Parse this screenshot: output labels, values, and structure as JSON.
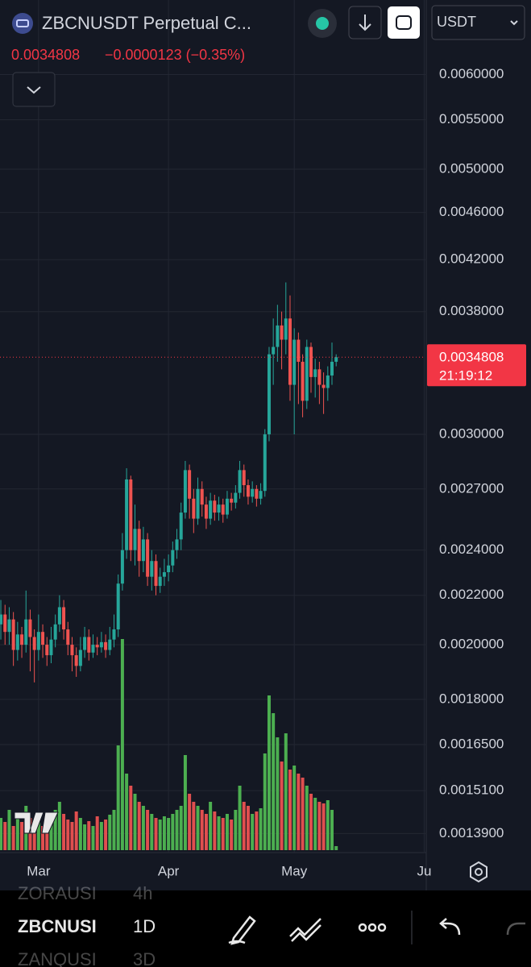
{
  "header": {
    "symbol_title": "ZBCNUSDT Perpetual C...",
    "last_price": "0.0034808",
    "change": "−0.0000123 (−0.35%)",
    "currency": "USDT"
  },
  "chart_data": {
    "type": "candlestick",
    "open": [
      0.00208,
      0.00212,
      0.00205,
      0.0021,
      0.00198,
      0.00204,
      0.002,
      0.0021,
      0.00203,
      0.00198,
      0.00205,
      0.002,
      0.00196,
      0.00202,
      0.00208,
      0.00215,
      0.00206,
      0.002,
      0.00196,
      0.00192,
      0.00198,
      0.00203,
      0.00197,
      0.002,
      0.00199,
      0.00201,
      0.00198,
      0.00202,
      0.00206,
      0.00225,
      0.0024,
      0.00275,
      0.0024,
      0.0025,
      0.00235,
      0.00245,
      0.00228,
      0.00235,
      0.00224,
      0.00228,
      0.0023,
      0.00233,
      0.0024,
      0.00245,
      0.00258,
      0.0028,
      0.00265,
      0.00255,
      0.0027,
      0.00262,
      0.00255,
      0.00264,
      0.00258,
      0.00262,
      0.00257,
      0.00265,
      0.00263,
      0.00268,
      0.0028,
      0.00272,
      0.00266,
      0.0027,
      0.00265,
      0.00269,
      0.003,
      0.0035,
      0.00355,
      0.0037,
      0.0036,
      0.00375,
      0.0033,
      0.0036,
      0.00345,
      0.0032,
      0.00355,
      0.00335,
      0.0034,
      0.0033,
      0.00328,
      0.00336,
      0.00345
    ],
    "high": [
      0.00218,
      0.00216,
      0.00215,
      0.00213,
      0.00209,
      0.00207,
      0.00222,
      0.00214,
      0.00206,
      0.00212,
      0.00208,
      0.00203,
      0.00207,
      0.00212,
      0.0022,
      0.00218,
      0.00209,
      0.00203,
      0.00199,
      0.00203,
      0.00207,
      0.00206,
      0.00204,
      0.00203,
      0.00205,
      0.00204,
      0.00207,
      0.00212,
      0.00229,
      0.00248,
      0.00281,
      0.00277,
      0.00262,
      0.00254,
      0.00251,
      0.00248,
      0.0024,
      0.00238,
      0.00232,
      0.00236,
      0.00238,
      0.00244,
      0.0025,
      0.00263,
      0.00285,
      0.00283,
      0.0027,
      0.00276,
      0.00274,
      0.00266,
      0.00268,
      0.00267,
      0.00266,
      0.00265,
      0.00269,
      0.00268,
      0.00272,
      0.00285,
      0.00283,
      0.00275,
      0.00274,
      0.00272,
      0.00273,
      0.00303,
      0.00355,
      0.00375,
      0.00385,
      0.0038,
      0.00402,
      0.00392,
      0.00368,
      0.00365,
      0.0035,
      0.0036,
      0.00358,
      0.00347,
      0.00345,
      0.00338,
      0.00342,
      0.00358,
      0.0035
    ],
    "low": [
      0.00202,
      0.002,
      0.002,
      0.00192,
      0.00194,
      0.00195,
      0.00197,
      0.0019,
      0.00186,
      0.00194,
      0.00195,
      0.00192,
      0.00193,
      0.00199,
      0.00205,
      0.00202,
      0.00196,
      0.0019,
      0.00188,
      0.0019,
      0.00195,
      0.00194,
      0.00195,
      0.00196,
      0.00197,
      0.00195,
      0.00196,
      0.00199,
      0.00203,
      0.00222,
      0.00236,
      0.00235,
      0.00233,
      0.00228,
      0.0023,
      0.00224,
      0.00222,
      0.0022,
      0.00221,
      0.00224,
      0.00226,
      0.0023,
      0.00236,
      0.0024,
      0.00255,
      0.00255,
      0.00248,
      0.00252,
      0.00256,
      0.0025,
      0.00252,
      0.00254,
      0.00254,
      0.00253,
      0.00255,
      0.00259,
      0.0026,
      0.00265,
      0.00266,
      0.00262,
      0.00263,
      0.00261,
      0.00262,
      0.00266,
      0.00296,
      0.0033,
      0.00345,
      0.0034,
      0.0035,
      0.0032,
      0.003,
      0.00318,
      0.0031,
      0.00315,
      0.00325,
      0.00322,
      0.00318,
      0.00312,
      0.0032,
      0.0033,
      0.00342
    ],
    "close": [
      0.00212,
      0.00205,
      0.0021,
      0.00198,
      0.00204,
      0.002,
      0.0021,
      0.00203,
      0.00198,
      0.00205,
      0.002,
      0.00196,
      0.00202,
      0.00208,
      0.00215,
      0.00206,
      0.002,
      0.00196,
      0.00192,
      0.00198,
      0.00203,
      0.00197,
      0.002,
      0.00199,
      0.00201,
      0.00198,
      0.00202,
      0.00206,
      0.00225,
      0.0024,
      0.00275,
      0.0024,
      0.0025,
      0.00235,
      0.00245,
      0.00228,
      0.00235,
      0.00224,
      0.00228,
      0.0023,
      0.00233,
      0.0024,
      0.00245,
      0.00258,
      0.0028,
      0.00265,
      0.00255,
      0.0027,
      0.00262,
      0.00255,
      0.00264,
      0.00258,
      0.00262,
      0.00257,
      0.00265,
      0.00263,
      0.00268,
      0.0028,
      0.00272,
      0.00266,
      0.0027,
      0.00265,
      0.00269,
      0.003,
      0.0035,
      0.00355,
      0.0037,
      0.0036,
      0.00375,
      0.0033,
      0.0036,
      0.00345,
      0.0032,
      0.00355,
      0.00335,
      0.0034,
      0.0033,
      0.00328,
      0.00336,
      0.00345,
      0.0034808
    ],
    "volume": [
      40,
      35,
      50,
      30,
      45,
      35,
      55,
      40,
      30,
      45,
      30,
      38,
      42,
      50,
      60,
      45,
      38,
      35,
      48,
      40,
      32,
      36,
      30,
      42,
      35,
      38,
      44,
      50,
      130,
      262,
      95,
      80,
      70,
      60,
      55,
      50,
      45,
      40,
      38,
      42,
      40,
      45,
      50,
      55,
      118,
      70,
      60,
      55,
      50,
      45,
      60,
      48,
      42,
      40,
      45,
      38,
      50,
      80,
      60,
      55,
      45,
      48,
      52,
      120,
      192,
      170,
      140,
      110,
      145,
      100,
      105,
      95,
      90,
      80,
      70,
      65,
      60,
      58,
      62,
      50,
      5
    ],
    "up_color": "#26a69a",
    "down_color": "#ef5350",
    "volume_up_color": "#4caf50",
    "volume_down_color": "#e04f4f",
    "log_scale": true,
    "grid": true,
    "ylim": [
      0.00134,
      0.00636
    ],
    "yticks": [
      {
        "value": 0.006,
        "label": "0.0060000"
      },
      {
        "value": 0.0055,
        "label": "0.0055000"
      },
      {
        "value": 0.005,
        "label": "0.0050000"
      },
      {
        "value": 0.0046,
        "label": "0.0046000"
      },
      {
        "value": 0.0042,
        "label": "0.0042000"
      },
      {
        "value": 0.0038,
        "label": "0.0038000"
      },
      {
        "value": 0.003,
        "label": "0.0030000"
      },
      {
        "value": 0.0027,
        "label": "0.0027000"
      },
      {
        "value": 0.0024,
        "label": "0.0024000"
      },
      {
        "value": 0.0022,
        "label": "0.0022000"
      },
      {
        "value": 0.002,
        "label": "0.0020000"
      },
      {
        "value": 0.0018,
        "label": "0.0018000"
      },
      {
        "value": 0.00165,
        "label": "0.0016500"
      },
      {
        "value": 0.00151,
        "label": "0.0015100"
      },
      {
        "value": 0.00139,
        "label": "0.0013900"
      }
    ],
    "xlim": [
      -0.2,
      101.3
    ],
    "xticks": [
      {
        "value": 9,
        "label": "Mar"
      },
      {
        "value": 40,
        "label": "Apr"
      },
      {
        "value": 70,
        "label": "May"
      },
      {
        "value": 101,
        "label": "Ju"
      }
    ],
    "last_price": 0.0034808,
    "countdown": "21:19:12"
  },
  "toolbar": {
    "rows": [
      {
        "symbol": "ZORAUSI",
        "interval": "4h"
      },
      {
        "symbol": "ZBCNUSI",
        "interval": "1D"
      },
      {
        "symbol": "ZANQUSI",
        "interval": "3D"
      }
    ]
  }
}
